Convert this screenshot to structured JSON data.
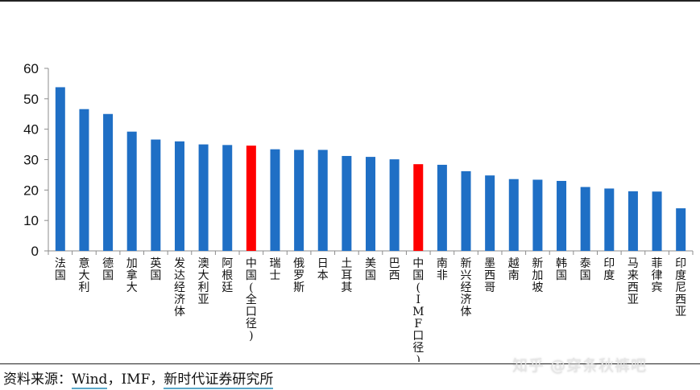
{
  "chart_data": {
    "type": "bar",
    "categories": [
      "法国",
      "意大利",
      "德国",
      "加拿大",
      "英国",
      "发达经济体",
      "澳大利亚",
      "阿根廷",
      "中国(全口径)",
      "瑞士",
      "俄罗斯",
      "日本",
      "土耳其",
      "美国",
      "巴西",
      "中国(IMF口径)",
      "南非",
      "新兴经济体",
      "墨西哥",
      "越南",
      "新加坡",
      "韩国",
      "泰国",
      "印度",
      "马来西亚",
      "菲律宾",
      "印度尼西亚"
    ],
    "values": [
      53.8,
      46.6,
      45.0,
      39.2,
      36.6,
      36.0,
      35.0,
      34.8,
      34.6,
      33.4,
      33.2,
      33.2,
      31.2,
      30.9,
      30.1,
      28.5,
      28.3,
      26.2,
      24.8,
      23.6,
      23.4,
      23.0,
      21.0,
      20.5,
      19.6,
      19.5,
      14.0
    ],
    "highlight": [
      "中国(全口径)",
      "中国(IMF口径)"
    ],
    "ylim": [
      0,
      60
    ],
    "yticks": [
      0,
      10,
      20,
      30,
      40,
      50,
      60
    ],
    "title": "",
    "xlabel": "",
    "ylabel": "",
    "grid": false,
    "colors": {
      "bar": "#1f6fc5",
      "highlight": "#ff0000",
      "axis": "#8c8c8c"
    }
  },
  "source": {
    "prefix": "资料来源：",
    "wind": "Wind",
    "sep1": "，",
    "imf": "IMF",
    "sep2": "，",
    "xsd": "新时代证券研究所"
  },
  "watermark": "知乎 @穿条秋裤吧"
}
